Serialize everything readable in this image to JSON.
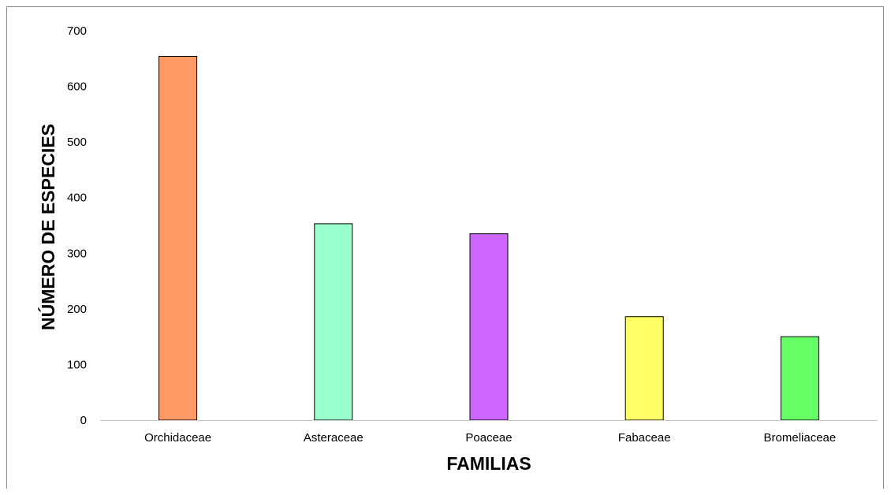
{
  "chart_data": {
    "type": "bar",
    "title": "",
    "xlabel": "FAMILIAS",
    "ylabel": "NÚMERO DE ESPECIES",
    "categories": [
      "Orchidaceae",
      "Asteraceae",
      "Poaceae",
      "Fabaceae",
      "Bromeliaceae"
    ],
    "values": [
      654,
      353,
      335,
      186,
      150
    ],
    "colors": [
      "#ff9966",
      "#99ffcc",
      "#cc66ff",
      "#ffff66",
      "#66ff66"
    ],
    "ylim": [
      0,
      700
    ],
    "yticks": [
      "0",
      "100",
      "200",
      "300",
      "400",
      "500",
      "600",
      "700"
    ],
    "grid": false,
    "legend": "none"
  }
}
